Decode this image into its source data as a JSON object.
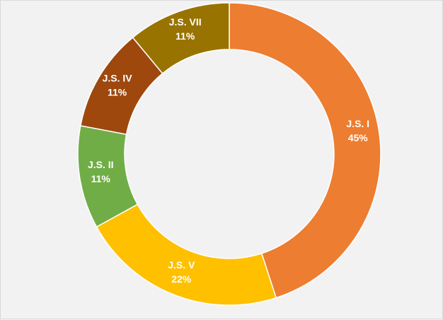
{
  "chart_data": {
    "type": "pie",
    "variant": "doughnut",
    "categories": [
      "J.S. I",
      "J.S. V",
      "J.S. II",
      "J.S. IV",
      "J.S. VII"
    ],
    "values": [
      45,
      22,
      11,
      11,
      11
    ],
    "labels": [
      "45%",
      "22%",
      "11%",
      "11%",
      "11%"
    ],
    "colors": [
      "#ed7d31",
      "#ffc000",
      "#70ad47",
      "#9e480e",
      "#997300"
    ],
    "start_angle_deg": 0,
    "direction": "clockwise",
    "legend": "none",
    "background": "#f2f2f2",
    "segment_border": "#ffffff"
  }
}
